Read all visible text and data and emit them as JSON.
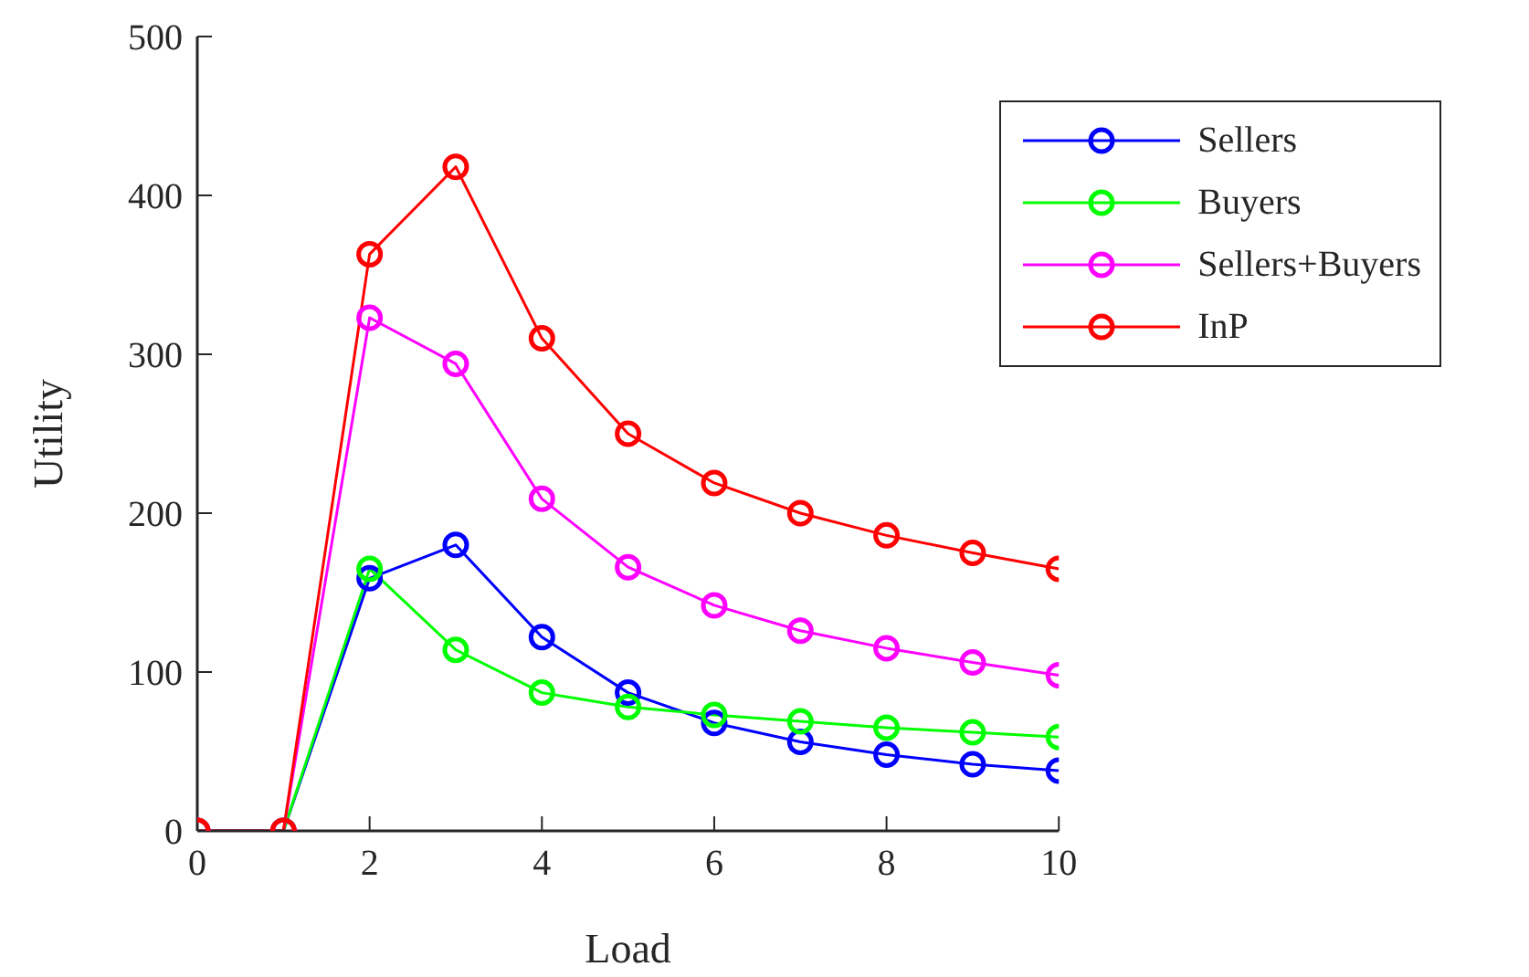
{
  "chart_data": {
    "type": "line",
    "xlabel": "Load",
    "ylabel": "Utility",
    "x": [
      0,
      1,
      2,
      3,
      4,
      5,
      6,
      7,
      8,
      9,
      10
    ],
    "xlim": [
      0,
      10
    ],
    "xticks": [
      0,
      2,
      4,
      6,
      8,
      10
    ],
    "ylim": [
      0,
      500
    ],
    "yticks": [
      0,
      100,
      200,
      300,
      400,
      500
    ],
    "grid": false,
    "legend": "top right",
    "marker": "circle",
    "line_style": "solid",
    "series": [
      {
        "name": "Sellers",
        "color": "#0000ff",
        "values": [
          0,
          0,
          159,
          180,
          122,
          87,
          68,
          56,
          48,
          42,
          38
        ]
      },
      {
        "name": "Buyers",
        "color": "#00ff00",
        "values": [
          0,
          0,
          165,
          114,
          87,
          78,
          73,
          69,
          65,
          62,
          59
        ]
      },
      {
        "name": "Sellers+Buyers",
        "color": "#ff00ff",
        "values": [
          0,
          0,
          323,
          294,
          209,
          166,
          142,
          126,
          115,
          106,
          98
        ]
      },
      {
        "name": "InP",
        "color": "#ff0000",
        "values": [
          0,
          0,
          363,
          418,
          310,
          250,
          219,
          200,
          186,
          175,
          165
        ]
      }
    ]
  }
}
